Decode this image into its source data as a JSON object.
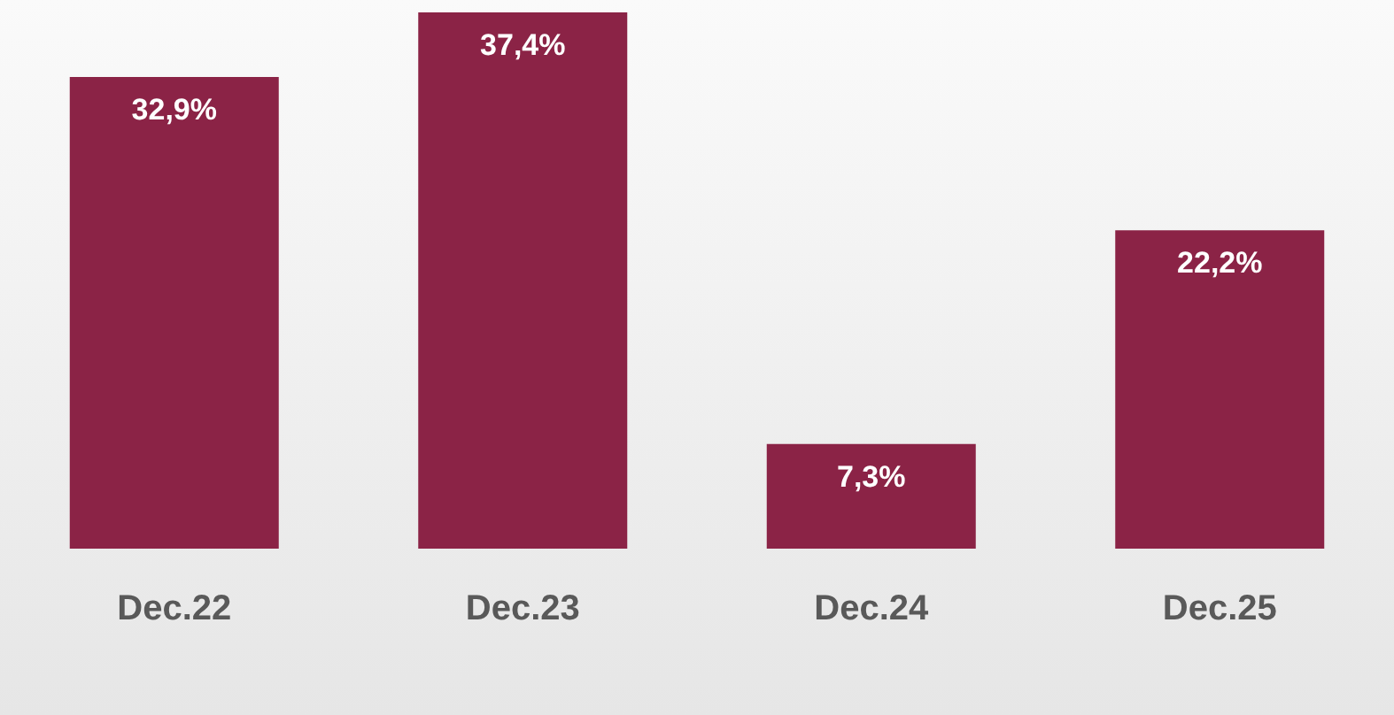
{
  "chart_data": {
    "type": "bar",
    "categories": [
      "Dec.22",
      "Dec.23",
      "Dec.24",
      "Dec.25"
    ],
    "values": [
      32.9,
      37.4,
      7.3,
      22.2
    ],
    "value_labels": [
      "32,9%",
      "37,4%",
      "7,3%",
      "22,2%"
    ],
    "color": "#8b2346"
  }
}
